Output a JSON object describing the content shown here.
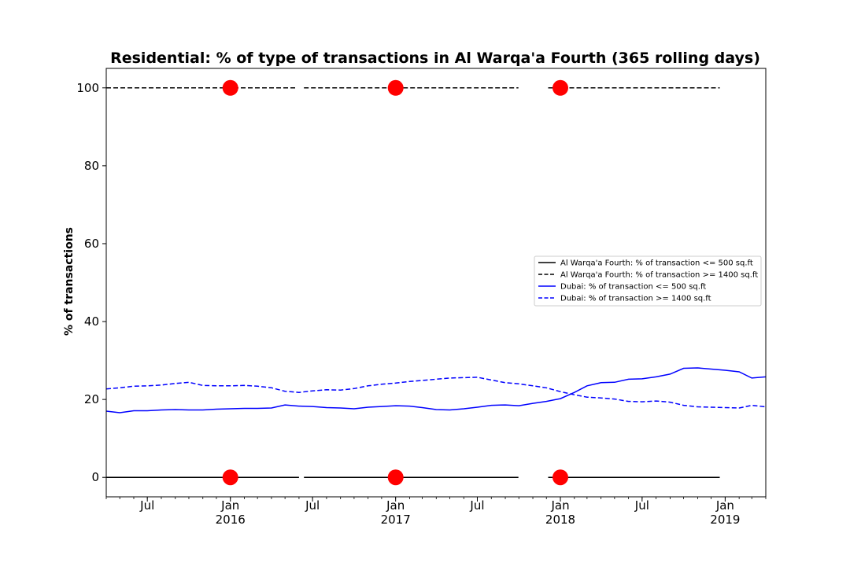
{
  "chart_data": {
    "type": "line",
    "title": "Residential: % of type of transactions in Al Warqa'a Fourth (365 rolling days)",
    "xlabel": "",
    "ylabel": "% of transactions",
    "ylim": [
      -5,
      105
    ],
    "xlim": [
      "2015-04-01",
      "2019-04-01"
    ],
    "grid": false,
    "legend_position": "center-right",
    "yticks": [
      0,
      20,
      40,
      60,
      80,
      100
    ],
    "xticks": [
      {
        "date": "2015-07-01",
        "label": "Jul",
        "year": ""
      },
      {
        "date": "2016-01-01",
        "label": "Jan",
        "year": "2016"
      },
      {
        "date": "2016-07-01",
        "label": "Jul",
        "year": ""
      },
      {
        "date": "2017-01-01",
        "label": "Jan",
        "year": "2017"
      },
      {
        "date": "2017-07-01",
        "label": "Jul",
        "year": ""
      },
      {
        "date": "2018-01-01",
        "label": "Jan",
        "year": "2018"
      },
      {
        "date": "2018-07-01",
        "label": "Jul",
        "year": ""
      },
      {
        "date": "2019-01-01",
        "label": "Jan",
        "year": "2019"
      }
    ],
    "series": [
      {
        "name": "Al Warqa'a Fourth: % of transaction <= 500 sq.ft",
        "color": "#000000",
        "style": "solid",
        "segments": [
          [
            [
              "2015-04-01",
              0
            ],
            [
              "2016-06-01",
              0
            ]
          ],
          [
            [
              "2016-06-12",
              0
            ],
            [
              "2017-09-30",
              0
            ]
          ],
          [
            [
              "2017-12-05",
              0
            ],
            [
              "2018-12-20",
              0
            ]
          ]
        ]
      },
      {
        "name": "Al Warqa'a Fourth: % of transaction >= 1400 sq.ft",
        "color": "#000000",
        "style": "dashed",
        "segments": [
          [
            [
              "2015-04-01",
              100
            ],
            [
              "2016-05-28",
              100
            ]
          ],
          [
            [
              "2016-06-12",
              100
            ],
            [
              "2017-09-30",
              100
            ]
          ],
          [
            [
              "2017-12-05",
              100
            ],
            [
              "2018-12-20",
              100
            ]
          ]
        ]
      },
      {
        "name": "Dubai: % of transaction <= 500 sq.ft",
        "color": "#0000ff",
        "style": "solid",
        "points": [
          [
            "2015-04-01",
            17.0
          ],
          [
            "2015-05-01",
            16.6
          ],
          [
            "2015-06-01",
            17.1
          ],
          [
            "2015-07-01",
            17.1
          ],
          [
            "2015-08-01",
            17.3
          ],
          [
            "2015-09-01",
            17.4
          ],
          [
            "2015-10-01",
            17.3
          ],
          [
            "2015-11-01",
            17.3
          ],
          [
            "2015-12-01",
            17.5
          ],
          [
            "2016-01-01",
            17.6
          ],
          [
            "2016-02-01",
            17.7
          ],
          [
            "2016-03-01",
            17.7
          ],
          [
            "2016-04-01",
            17.8
          ],
          [
            "2016-05-01",
            18.6
          ],
          [
            "2016-06-01",
            18.3
          ],
          [
            "2016-07-01",
            18.2
          ],
          [
            "2016-08-01",
            17.9
          ],
          [
            "2016-09-01",
            17.8
          ],
          [
            "2016-10-01",
            17.6
          ],
          [
            "2016-11-01",
            18.0
          ],
          [
            "2016-12-01",
            18.2
          ],
          [
            "2017-01-01",
            18.4
          ],
          [
            "2017-02-01",
            18.3
          ],
          [
            "2017-03-01",
            17.9
          ],
          [
            "2017-04-01",
            17.4
          ],
          [
            "2017-05-01",
            17.3
          ],
          [
            "2017-06-01",
            17.6
          ],
          [
            "2017-07-01",
            18.0
          ],
          [
            "2017-08-01",
            18.5
          ],
          [
            "2017-09-01",
            18.6
          ],
          [
            "2017-10-01",
            18.4
          ],
          [
            "2017-11-01",
            19.0
          ],
          [
            "2017-12-01",
            19.5
          ],
          [
            "2018-01-01",
            20.2
          ],
          [
            "2018-02-01",
            21.8
          ],
          [
            "2018-03-01",
            23.5
          ],
          [
            "2018-04-01",
            24.3
          ],
          [
            "2018-05-01",
            24.4
          ],
          [
            "2018-06-01",
            25.2
          ],
          [
            "2018-07-01",
            25.3
          ],
          [
            "2018-08-01",
            25.8
          ],
          [
            "2018-09-01",
            26.5
          ],
          [
            "2018-10-01",
            28.0
          ],
          [
            "2018-11-01",
            28.1
          ],
          [
            "2018-12-01",
            27.8
          ],
          [
            "2019-01-01",
            27.5
          ],
          [
            "2019-02-01",
            27.1
          ],
          [
            "2019-03-01",
            25.5
          ],
          [
            "2019-04-01",
            25.8
          ]
        ]
      },
      {
        "name": "Dubai: % of transaction >= 1400 sq.ft",
        "color": "#0000ff",
        "style": "dashed",
        "points": [
          [
            "2015-04-01",
            22.7
          ],
          [
            "2015-05-01",
            23.0
          ],
          [
            "2015-06-01",
            23.4
          ],
          [
            "2015-07-01",
            23.5
          ],
          [
            "2015-08-01",
            23.7
          ],
          [
            "2015-09-01",
            24.1
          ],
          [
            "2015-10-01",
            24.4
          ],
          [
            "2015-11-01",
            23.6
          ],
          [
            "2015-12-01",
            23.5
          ],
          [
            "2016-01-01",
            23.5
          ],
          [
            "2016-02-01",
            23.6
          ],
          [
            "2016-03-01",
            23.4
          ],
          [
            "2016-04-01",
            23.0
          ],
          [
            "2016-05-01",
            22.1
          ],
          [
            "2016-06-01",
            21.8
          ],
          [
            "2016-07-01",
            22.2
          ],
          [
            "2016-08-01",
            22.5
          ],
          [
            "2016-09-01",
            22.4
          ],
          [
            "2016-10-01",
            22.8
          ],
          [
            "2016-11-01",
            23.5
          ],
          [
            "2016-12-01",
            23.9
          ],
          [
            "2017-01-01",
            24.2
          ],
          [
            "2017-02-01",
            24.6
          ],
          [
            "2017-03-01",
            24.9
          ],
          [
            "2017-04-01",
            25.2
          ],
          [
            "2017-05-01",
            25.5
          ],
          [
            "2017-06-01",
            25.6
          ],
          [
            "2017-07-01",
            25.7
          ],
          [
            "2017-08-01",
            25.0
          ],
          [
            "2017-09-01",
            24.3
          ],
          [
            "2017-10-01",
            24.0
          ],
          [
            "2017-11-01",
            23.5
          ],
          [
            "2017-12-01",
            23.0
          ],
          [
            "2018-01-01",
            22.0
          ],
          [
            "2018-02-01",
            21.2
          ],
          [
            "2018-03-01",
            20.6
          ],
          [
            "2018-04-01",
            20.4
          ],
          [
            "2018-05-01",
            20.1
          ],
          [
            "2018-06-01",
            19.5
          ],
          [
            "2018-07-01",
            19.4
          ],
          [
            "2018-08-01",
            19.6
          ],
          [
            "2018-09-01",
            19.3
          ],
          [
            "2018-10-01",
            18.5
          ],
          [
            "2018-11-01",
            18.1
          ],
          [
            "2018-12-01",
            18.0
          ],
          [
            "2019-01-01",
            17.9
          ],
          [
            "2019-02-01",
            17.8
          ],
          [
            "2019-03-01",
            18.5
          ],
          [
            "2019-04-01",
            18.1
          ]
        ]
      }
    ],
    "markers": {
      "color": "#ff0000",
      "points": [
        [
          "2016-01-01",
          0
        ],
        [
          "2017-01-01",
          0
        ],
        [
          "2018-01-01",
          0
        ],
        [
          "2016-01-01",
          100
        ],
        [
          "2017-01-01",
          100
        ],
        [
          "2018-01-01",
          100
        ]
      ]
    }
  }
}
